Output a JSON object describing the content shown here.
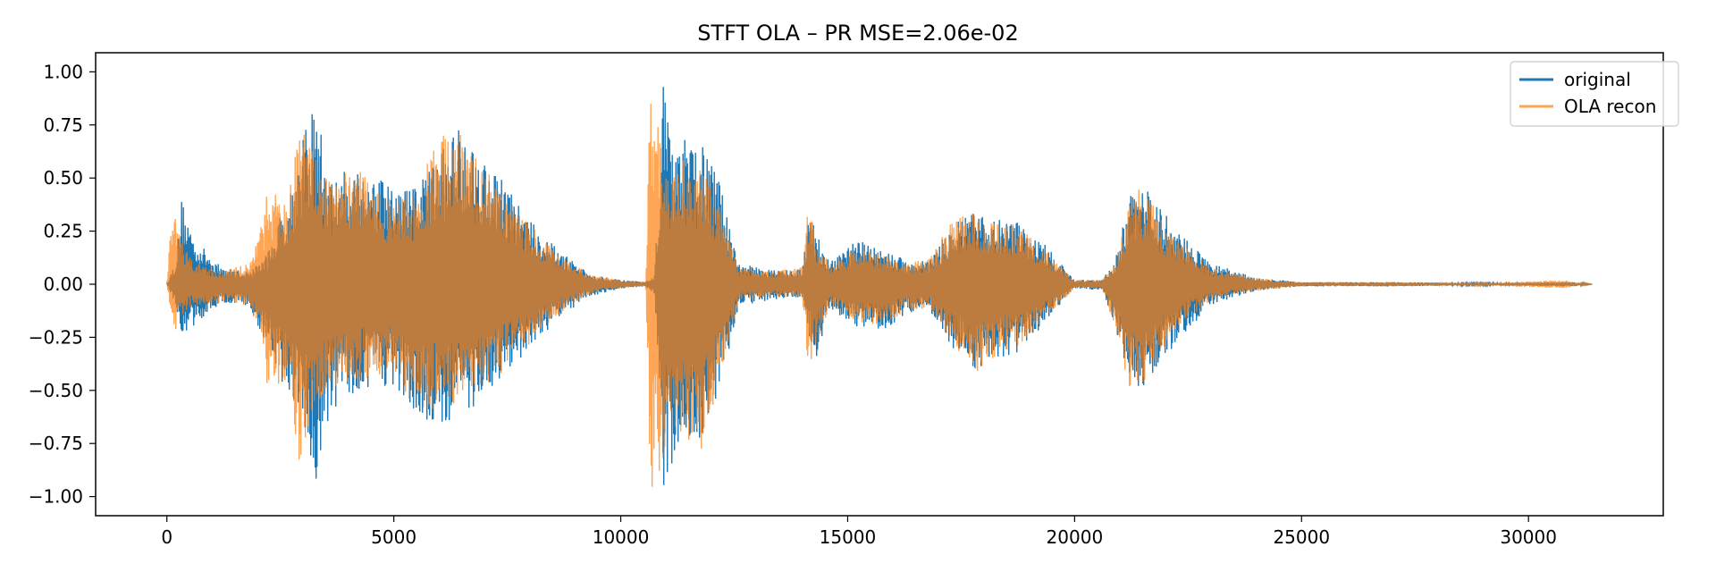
{
  "chart_data": {
    "type": "line",
    "title": "STFT OLA – PR MSE=2.06e-02",
    "xlabel": "",
    "ylabel": "",
    "xlim": [
      -1570,
      32970
    ],
    "ylim": [
      -1.09,
      1.09
    ],
    "x_ticks": [
      0,
      5000,
      10000,
      15000,
      20000,
      25000,
      30000
    ],
    "x_tick_labels": [
      "0",
      "5000",
      "10000",
      "15000",
      "20000",
      "25000",
      "30000"
    ],
    "y_ticks": [
      1.0,
      0.75,
      0.5,
      0.25,
      0.0,
      -0.25,
      -0.5,
      -0.75,
      -1.0
    ],
    "y_tick_labels": [
      "1.00",
      "0.75",
      "0.50",
      "0.25",
      "0.00",
      "−0.25",
      "−0.50",
      "−0.75",
      "−1.00"
    ],
    "grid": false,
    "legend_position": "top-right",
    "series": [
      {
        "name": "original",
        "color": "#1f77b4",
        "opacity": 1.0,
        "x_range": [
          0,
          31400
        ],
        "envelope": {
          "x": [
            0,
            200,
            330,
            600,
            1200,
            1800,
            2200,
            2700,
            3100,
            3250,
            3600,
            4200,
            5000,
            5500,
            6000,
            6450,
            6800,
            7400,
            8000,
            8700,
            9300,
            10000,
            10550,
            10750,
            10950,
            11150,
            11400,
            11800,
            12050,
            12300,
            12600,
            13200,
            14000,
            14150,
            14300,
            14600,
            15200,
            15800,
            16300,
            16800,
            17300,
            17800,
            18200,
            18700,
            19300,
            20000,
            20600,
            20900,
            21200,
            21500,
            21800,
            22300,
            23000,
            24000,
            25000,
            27000,
            29000,
            31000,
            31400
          ],
          "upper": [
            0.0,
            0.12,
            0.41,
            0.22,
            0.08,
            0.06,
            0.14,
            0.45,
            0.76,
            0.87,
            0.5,
            0.58,
            0.45,
            0.47,
            0.62,
            0.77,
            0.65,
            0.5,
            0.3,
            0.15,
            0.05,
            0.02,
            0.01,
            0.05,
            0.99,
            0.6,
            0.68,
            0.67,
            0.55,
            0.4,
            0.1,
            0.07,
            0.07,
            0.4,
            0.25,
            0.1,
            0.21,
            0.17,
            0.11,
            0.12,
            0.28,
            0.34,
            0.31,
            0.3,
            0.2,
            0.02,
            0.02,
            0.12,
            0.41,
            0.47,
            0.4,
            0.25,
            0.1,
            0.03,
            0.01,
            0.01,
            0.005,
            0.01,
            0.0
          ],
          "lower": [
            0.0,
            -0.1,
            -0.23,
            -0.2,
            -0.09,
            -0.1,
            -0.3,
            -0.55,
            -0.72,
            -0.99,
            -0.6,
            -0.5,
            -0.48,
            -0.62,
            -0.67,
            -0.62,
            -0.58,
            -0.45,
            -0.3,
            -0.15,
            -0.06,
            -0.02,
            -0.01,
            -0.05,
            -0.98,
            -0.88,
            -0.8,
            -0.72,
            -0.6,
            -0.4,
            -0.1,
            -0.08,
            -0.06,
            -0.25,
            -0.35,
            -0.12,
            -0.2,
            -0.22,
            -0.14,
            -0.12,
            -0.3,
            -0.4,
            -0.37,
            -0.33,
            -0.2,
            -0.02,
            -0.03,
            -0.2,
            -0.45,
            -0.52,
            -0.4,
            -0.26,
            -0.1,
            -0.03,
            -0.01,
            -0.01,
            -0.005,
            -0.01,
            0.0
          ]
        }
      },
      {
        "name": "OLA recon",
        "color": "#ff7f0e",
        "opacity": 0.7,
        "x_range": [
          0,
          31400
        ],
        "envelope": {
          "x": [
            0,
            120,
            200,
            330,
            600,
            1200,
            1800,
            2100,
            2200,
            2700,
            2950,
            3250,
            3600,
            4200,
            5000,
            5500,
            6000,
            6450,
            6800,
            7400,
            8000,
            8700,
            9300,
            10000,
            10550,
            10660,
            10950,
            11150,
            11400,
            11800,
            12050,
            12300,
            12600,
            13200,
            14000,
            14150,
            14300,
            14600,
            15200,
            15800,
            16300,
            16800,
            17300,
            17800,
            18200,
            18700,
            19300,
            20000,
            20600,
            20900,
            21200,
            21500,
            21800,
            22300,
            23000,
            24000,
            25000,
            27000,
            29000,
            30800,
            31000,
            31400
          ],
          "upper": [
            0.0,
            0.41,
            0.3,
            0.2,
            0.1,
            0.06,
            0.1,
            0.3,
            0.43,
            0.45,
            0.87,
            0.6,
            0.5,
            0.55,
            0.4,
            0.45,
            0.7,
            0.72,
            0.6,
            0.45,
            0.28,
            0.13,
            0.05,
            0.02,
            0.01,
            0.99,
            0.55,
            0.5,
            0.6,
            0.55,
            0.45,
            0.3,
            0.08,
            0.06,
            0.08,
            0.43,
            0.2,
            0.1,
            0.17,
            0.14,
            0.1,
            0.12,
            0.3,
            0.35,
            0.3,
            0.28,
            0.18,
            0.02,
            0.02,
            0.1,
            0.4,
            0.47,
            0.35,
            0.2,
            0.08,
            0.03,
            0.01,
            0.01,
            0.005,
            0.02,
            0.01,
            0.0
          ],
          "lower": [
            0.0,
            -0.2,
            -0.22,
            -0.15,
            -0.1,
            -0.09,
            -0.1,
            -0.25,
            -0.49,
            -0.48,
            -0.99,
            -0.55,
            -0.55,
            -0.45,
            -0.42,
            -0.6,
            -0.6,
            -0.55,
            -0.5,
            -0.42,
            -0.28,
            -0.13,
            -0.05,
            -0.02,
            -0.01,
            -0.99,
            -0.85,
            -0.7,
            -0.75,
            -0.8,
            -0.55,
            -0.35,
            -0.08,
            -0.06,
            -0.06,
            -0.46,
            -0.3,
            -0.1,
            -0.18,
            -0.2,
            -0.12,
            -0.12,
            -0.28,
            -0.42,
            -0.35,
            -0.3,
            -0.18,
            -0.02,
            -0.02,
            -0.21,
            -0.5,
            -0.48,
            -0.35,
            -0.2,
            -0.08,
            -0.03,
            -0.01,
            -0.01,
            -0.005,
            -0.02,
            -0.01,
            0.0
          ]
        }
      }
    ]
  }
}
